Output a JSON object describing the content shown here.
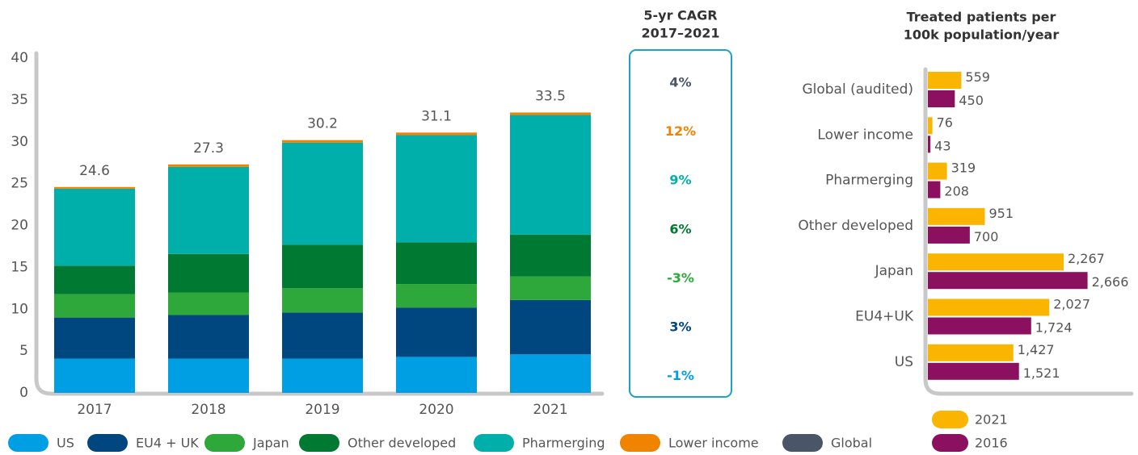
{
  "chart_data": [
    {
      "type": "stacked_bar",
      "categories": [
        "2017",
        "2018",
        "2019",
        "2020",
        "2021"
      ],
      "ylim": [
        0,
        40
      ],
      "yticks": [
        0,
        5,
        10,
        15,
        20,
        25,
        30,
        35,
        40
      ],
      "totals": [
        24.6,
        27.3,
        30.2,
        31.1,
        33.5
      ],
      "series": [
        {
          "name": "US",
          "color": "#009fe3",
          "values": [
            4.1,
            4.1,
            4.1,
            4.3,
            4.6
          ],
          "cagr": "-1%"
        },
        {
          "name": "EU4 + UK",
          "color": "#00467f",
          "values": [
            4.9,
            5.2,
            5.5,
            5.9,
            6.5
          ],
          "cagr": "3%"
        },
        {
          "name": "Japan",
          "color": "#2ea83a",
          "values": [
            2.8,
            2.7,
            2.9,
            2.8,
            2.8
          ],
          "cagr": "-3%"
        },
        {
          "name": "Other developed",
          "color": "#007a33",
          "values": [
            3.4,
            4.6,
            5.2,
            5.0,
            5.0
          ],
          "cagr": "6%"
        },
        {
          "name": "Pharmerging",
          "color": "#00afaa",
          "values": [
            9.2,
            10.4,
            12.2,
            12.8,
            14.3
          ],
          "cagr": "9%"
        },
        {
          "name": "Lower income",
          "color": "#f08300",
          "values": [
            0.2,
            0.3,
            0.3,
            0.3,
            0.3
          ],
          "cagr": "12%"
        }
      ],
      "global": {
        "name": "Global",
        "color": "#4a5568",
        "cagr": "4%"
      },
      "cagr_title": [
        "5-yr CAGR",
        "2017–2021"
      ]
    },
    {
      "type": "hbar",
      "title": [
        "Treated patients per",
        "100k population/year"
      ],
      "categories": [
        "Global (audited)",
        "Lower income",
        "Pharmerging",
        "Other developed",
        "Japan",
        "EU4+UK",
        "US"
      ],
      "xlim": [
        0,
        3400
      ],
      "series": [
        {
          "name": "2021",
          "color": "#f9b500",
          "values": [
            559,
            76,
            319,
            951,
            2267,
            2027,
            1427
          ],
          "value_labels": [
            "559",
            "76",
            "319",
            "951",
            "2,267",
            "2,027",
            "1,427"
          ]
        },
        {
          "name": "2016",
          "color": "#8b1060",
          "values": [
            450,
            43,
            208,
            700,
            2666,
            1724,
            1521
          ],
          "value_labels": [
            "450",
            "43",
            "208",
            "700",
            "2,666",
            "1,724",
            "1,521"
          ]
        }
      ]
    }
  ]
}
